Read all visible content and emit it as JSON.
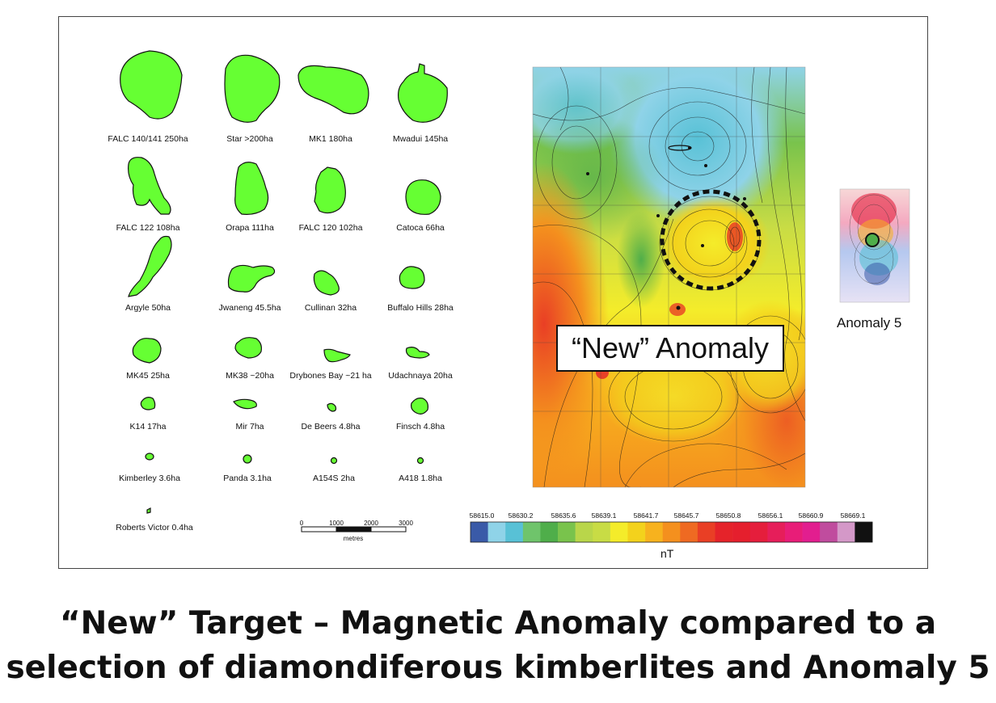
{
  "kimberlites": [
    {
      "label": "FALC 140/141 250ha"
    },
    {
      "label": "Star >200ha"
    },
    {
      "label": "MK1 180ha"
    },
    {
      "label": "Mwadui 145ha"
    },
    {
      "label": "FALC 122 108ha"
    },
    {
      "label": "Orapa 111ha"
    },
    {
      "label": "FALC 120 102ha"
    },
    {
      "label": "Catoca 66ha"
    },
    {
      "label": "Argyle 50ha"
    },
    {
      "label": "Jwaneng 45.5ha"
    },
    {
      "label": "Cullinan 32ha"
    },
    {
      "label": "Buffalo Hills 28ha"
    },
    {
      "label": "MK45 25ha"
    },
    {
      "label": "MK38 ~20ha"
    },
    {
      "label": "Drybones Bay ~21 ha"
    },
    {
      "label": "Udachnaya 20ha"
    },
    {
      "label": "K14 17ha"
    },
    {
      "label": "Mir 7ha"
    },
    {
      "label": "De Beers 4.8ha"
    },
    {
      "label": "Finsch 4.8ha"
    },
    {
      "label": "Kimberley 3.6ha"
    },
    {
      "label": "Panda 3.1ha"
    },
    {
      "label": "A154S 2ha"
    },
    {
      "label": "A418 1.8ha"
    },
    {
      "label": "Roberts Victor 0.4ha"
    }
  ],
  "colors": {
    "kimberlite_fill": "#66ff33",
    "outline": "#111111"
  },
  "scale_bar": {
    "ticks": [
      "0",
      "1000",
      "2000",
      "3000"
    ],
    "unit": "metres"
  },
  "colorbar": {
    "tick_labels": [
      "58615.0",
      "58630.2",
      "58635.6",
      "58639.1",
      "58641.7",
      "58645.7",
      "58650.8",
      "58656.1",
      "58660.9",
      "58669.1"
    ],
    "unit": "nT",
    "swatches": [
      "#3a5aa8",
      "#8fd3e8",
      "#58c1d6",
      "#6fc46b",
      "#4fae4a",
      "#79c34c",
      "#b9d64a",
      "#c8dc45",
      "#f4ec2a",
      "#f3d21c",
      "#f7b21e",
      "#f4901e",
      "#ef6a22",
      "#e93f25",
      "#e5232a",
      "#e51f2d",
      "#e51e3c",
      "#e61e5a",
      "#e81d78",
      "#e21e8f",
      "#c04c9e",
      "#d498c8",
      "#111111"
    ]
  },
  "map": {
    "anomaly_label": "“New” Anomaly"
  },
  "anomaly5": {
    "label": "Anomaly 5"
  },
  "caption": {
    "line1": "“New” Target – Magnetic Anomaly compared to a",
    "line2": "selection of diamondiferous kimberlites and Anomaly 5"
  }
}
